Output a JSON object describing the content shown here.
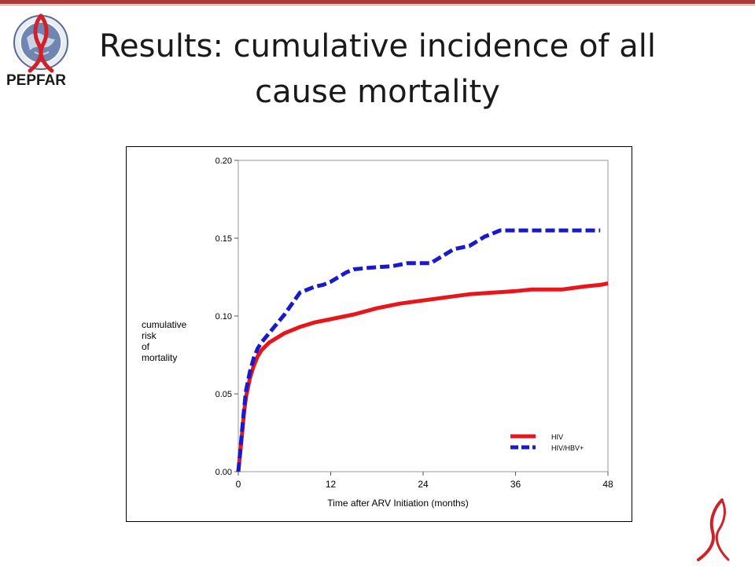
{
  "slide": {
    "title_line1": "Results: cumulative incidence of all",
    "title_line2": "cause  mortality",
    "logo_text": "PEPFAR",
    "logo_icon": "pepfar-seal-icon",
    "ribbon_icon": "red-ribbon-icon",
    "accent_color": "#b03a3a"
  },
  "chart_data": {
    "type": "line",
    "title": "",
    "xlabel": "Time after ARV Initiation (months)",
    "ylabel": [
      "cumulative",
      "risk",
      "of",
      "mortality"
    ],
    "xlim": [
      0,
      48
    ],
    "ylim": [
      0,
      0.2
    ],
    "xticks": [
      0,
      12,
      24,
      36,
      48
    ],
    "xtick_labels": [
      "0",
      "12",
      "24",
      "36",
      "48"
    ],
    "yticks": [
      0,
      0.05,
      0.1,
      0.15,
      0.2
    ],
    "ytick_labels": [
      "0.00",
      "0.05",
      "0.10",
      "0.15",
      "0.20"
    ],
    "grid": false,
    "legend_position": "bottom-right",
    "series": [
      {
        "name": "HIV",
        "color": "#e8161b",
        "style": "solid",
        "x": [
          0,
          0.25,
          0.5,
          0.75,
          1,
          1.5,
          2,
          2.5,
          3,
          4,
          5,
          6,
          8,
          10,
          12,
          15,
          18,
          21,
          24,
          27,
          30,
          33,
          36,
          38,
          42,
          45,
          47,
          48
        ],
        "y": [
          0,
          0.012,
          0.025,
          0.038,
          0.048,
          0.06,
          0.068,
          0.074,
          0.078,
          0.083,
          0.086,
          0.089,
          0.093,
          0.096,
          0.098,
          0.101,
          0.105,
          0.108,
          0.11,
          0.112,
          0.114,
          0.115,
          0.116,
          0.117,
          0.117,
          0.119,
          0.12,
          0.121
        ]
      },
      {
        "name": "HIV/HBV+",
        "color": "#1a1acd",
        "style": "dashed",
        "x": [
          0,
          0.25,
          0.5,
          0.75,
          1,
          1.5,
          2,
          2.5,
          3,
          4,
          5,
          6,
          7,
          8,
          9,
          10,
          11,
          12,
          13,
          14,
          15,
          17,
          20,
          22,
          25,
          26,
          27,
          28,
          30,
          31,
          32,
          33,
          34,
          36,
          40,
          44,
          47
        ],
        "y": [
          0,
          0.013,
          0.027,
          0.04,
          0.052,
          0.064,
          0.073,
          0.079,
          0.083,
          0.089,
          0.095,
          0.101,
          0.108,
          0.115,
          0.117,
          0.119,
          0.12,
          0.122,
          0.125,
          0.128,
          0.13,
          0.131,
          0.132,
          0.134,
          0.134,
          0.137,
          0.14,
          0.143,
          0.145,
          0.148,
          0.151,
          0.153,
          0.155,
          0.155,
          0.155,
          0.155,
          0.155
        ]
      }
    ]
  }
}
